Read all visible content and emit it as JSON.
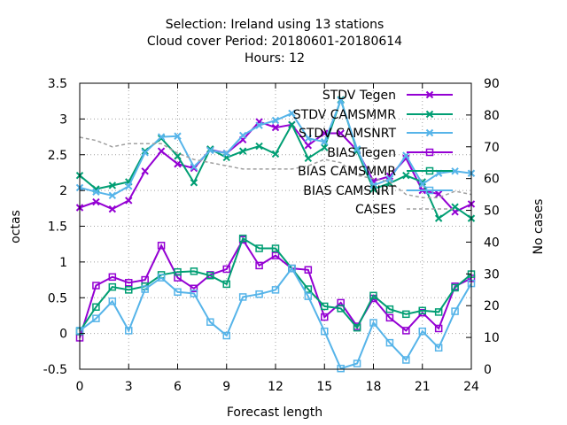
{
  "chart_data": {
    "type": "line",
    "title_lines": [
      "Selection: Ireland using    13 stations",
      "Cloud cover   Period: 20180601-20180614",
      "Hours:  12"
    ],
    "xlabel": "Forecast length",
    "ylabel": "octas",
    "y2label": "No cases",
    "xlim": [
      0,
      24
    ],
    "ylim": [
      -0.5,
      3.5
    ],
    "y2lim": [
      0,
      90
    ],
    "xticks": [
      0,
      3,
      6,
      9,
      12,
      15,
      18,
      21,
      24
    ],
    "yticks": [
      -0.5,
      0,
      0.5,
      1,
      1.5,
      2,
      2.5,
      3,
      3.5
    ],
    "y2ticks": [
      0,
      10,
      20,
      30,
      40,
      50,
      60,
      70,
      80,
      90
    ],
    "grid": true,
    "legend_position": "top-right",
    "x": [
      0,
      1,
      2,
      3,
      4,
      5,
      6,
      7,
      8,
      9,
      10,
      11,
      12,
      13,
      14,
      15,
      16,
      17,
      18,
      19,
      20,
      21,
      22,
      23,
      24
    ],
    "series": [
      {
        "name": "STDV Tegen",
        "color": "#9400d3",
        "marker": "x",
        "axis": "y1",
        "values": [
          1.76,
          1.84,
          1.74,
          1.86,
          2.27,
          2.55,
          2.37,
          2.31,
          2.57,
          2.52,
          2.71,
          2.96,
          2.88,
          2.92,
          2.63,
          2.8,
          2.8,
          2.56,
          2.13,
          2.2,
          2.45,
          2.0,
          1.95,
          1.7,
          1.81
        ]
      },
      {
        "name": "STDV CAMSMMR",
        "color": "#009e73",
        "marker": "x",
        "axis": "y1",
        "values": [
          2.21,
          2.02,
          2.07,
          2.12,
          2.55,
          2.73,
          2.48,
          2.11,
          2.58,
          2.46,
          2.55,
          2.62,
          2.51,
          2.92,
          2.45,
          2.6,
          3.27,
          2.55,
          2.02,
          2.1,
          2.21,
          2.12,
          1.61,
          1.77,
          1.61
        ]
      },
      {
        "name": "STDV CAMSNRT",
        "color": "#56b4e9",
        "marker": "x",
        "axis": "y1",
        "values": [
          2.04,
          1.98,
          1.93,
          2.06,
          2.53,
          2.75,
          2.76,
          2.33,
          2.56,
          2.52,
          2.77,
          2.91,
          2.98,
          3.08,
          2.73,
          2.68,
          3.26,
          2.58,
          2.07,
          2.16,
          2.49,
          2.09,
          2.24,
          2.27,
          2.24
        ]
      },
      {
        "name": "BIAS Tegen",
        "color": "#9400d3",
        "marker": "square",
        "axis": "y1",
        "values": [
          -0.06,
          0.67,
          0.79,
          0.71,
          0.75,
          1.23,
          0.78,
          0.63,
          0.82,
          0.9,
          1.31,
          0.95,
          1.09,
          0.91,
          0.89,
          0.23,
          0.43,
          0.1,
          0.49,
          0.22,
          0.04,
          0.29,
          0.07,
          0.66,
          0.77
        ]
      },
      {
        "name": "BIAS CAMSMMR",
        "color": "#009e73",
        "marker": "square",
        "axis": "y1",
        "values": [
          0.03,
          0.37,
          0.65,
          0.61,
          0.66,
          0.82,
          0.86,
          0.87,
          0.81,
          0.69,
          1.33,
          1.19,
          1.19,
          0.91,
          0.62,
          0.38,
          0.35,
          0.08,
          0.53,
          0.34,
          0.27,
          0.32,
          0.3,
          0.64,
          0.83
        ]
      },
      {
        "name": "BIAS CAMSNRT",
        "color": "#56b4e9",
        "marker": "square",
        "axis": "y1",
        "values": [
          0.04,
          0.21,
          0.45,
          0.04,
          0.62,
          0.78,
          0.58,
          0.56,
          0.16,
          -0.03,
          0.51,
          0.55,
          0.61,
          0.91,
          0.52,
          0.03,
          -0.49,
          -0.42,
          0.15,
          -0.13,
          -0.37,
          0.03,
          -0.2,
          0.31,
          0.7
        ]
      },
      {
        "name": "CASES",
        "color": "#a0a0a0",
        "marker": "none",
        "dash": true,
        "axis": "y2",
        "values": [
          73,
          72,
          70,
          71,
          71,
          71,
          68,
          66,
          65,
          64,
          63,
          63,
          63,
          63,
          64,
          66,
          65,
          61,
          60,
          59,
          55,
          54,
          54,
          56,
          55
        ]
      }
    ]
  }
}
